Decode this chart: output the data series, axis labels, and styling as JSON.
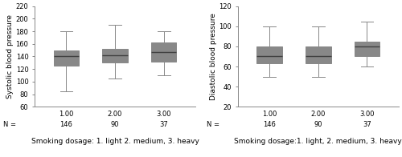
{
  "left_plot": {
    "ylabel": "Systolic blood pressure",
    "ylim": [
      60,
      220
    ],
    "yticks": [
      60,
      80,
      100,
      120,
      140,
      160,
      180,
      200,
      220
    ],
    "xlabel": "Smoking dosage: 1. light 2. medium, 3. heavy",
    "boxes": [
      {
        "whislo": 85,
        "q1": 125,
        "med": 140,
        "q3": 150,
        "whishi": 180
      },
      {
        "whislo": 105,
        "q1": 130,
        "med": 142,
        "q3": 152,
        "whishi": 190
      },
      {
        "whislo": 110,
        "q1": 132,
        "med": 147,
        "q3": 162,
        "whishi": 180
      }
    ],
    "ns": [
      146,
      90,
      37
    ],
    "positions": [
      1.0,
      2.0,
      3.0
    ]
  },
  "right_plot": {
    "ylabel": "Diastolic blood pressure",
    "ylim": [
      20,
      120
    ],
    "yticks": [
      20,
      40,
      60,
      80,
      100,
      120
    ],
    "xlabel": "Smoking dosage:1. light, 2. medium, 3. heavy",
    "boxes": [
      {
        "whislo": 50,
        "q1": 63,
        "med": 70,
        "q3": 80,
        "whishi": 100
      },
      {
        "whislo": 50,
        "q1": 63,
        "med": 70,
        "q3": 80,
        "whishi": 100
      },
      {
        "whislo": 60,
        "q1": 70,
        "med": 80,
        "q3": 85,
        "whishi": 105
      }
    ],
    "ns": [
      146,
      90,
      37
    ],
    "positions": [
      1.0,
      2.0,
      3.0
    ]
  },
  "box_facecolor": "#c8c8c8",
  "box_edgecolor": "#888888",
  "median_color": "#404040",
  "fontsize": 6.5,
  "tick_fontsize": 6,
  "n_fontsize": 6
}
